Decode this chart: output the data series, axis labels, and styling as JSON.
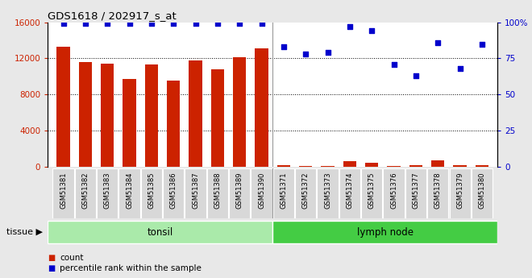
{
  "title": "GDS1618 / 202917_s_at",
  "samples": [
    "GSM51381",
    "GSM51382",
    "GSM51383",
    "GSM51384",
    "GSM51385",
    "GSM51386",
    "GSM51387",
    "GSM51388",
    "GSM51389",
    "GSM51390",
    "GSM51371",
    "GSM51372",
    "GSM51373",
    "GSM51374",
    "GSM51375",
    "GSM51376",
    "GSM51377",
    "GSM51378",
    "GSM51379",
    "GSM51380"
  ],
  "counts": [
    13300,
    11600,
    11400,
    9700,
    11300,
    9500,
    11750,
    10800,
    12100,
    13100,
    150,
    100,
    50,
    580,
    470,
    130,
    180,
    680,
    220,
    180
  ],
  "percentiles": [
    99,
    99,
    99,
    99,
    99,
    99,
    99,
    99,
    99,
    99,
    83,
    78,
    79,
    97,
    94,
    71,
    63,
    86,
    68,
    85
  ],
  "bar_color": "#cc2200",
  "dot_color": "#0000cc",
  "n_tonsil": 10,
  "tonsil_color": "#aaeaaa",
  "lymph_color": "#44cc44",
  "tissue_label": "tissue",
  "tonsil_label": "tonsil",
  "lymph_label": "lymph node",
  "count_label": "count",
  "percentile_label": "percentile rank within the sample",
  "ylim_left": [
    0,
    16000
  ],
  "ylim_right": [
    0,
    100
  ],
  "yticks_left": [
    0,
    4000,
    8000,
    12000,
    16000
  ],
  "yticks_right": [
    0,
    25,
    50,
    75,
    100
  ],
  "bg_color": "#e8e8e8",
  "plot_bg": "#ffffff",
  "cell_bg": "#d8d8d8"
}
